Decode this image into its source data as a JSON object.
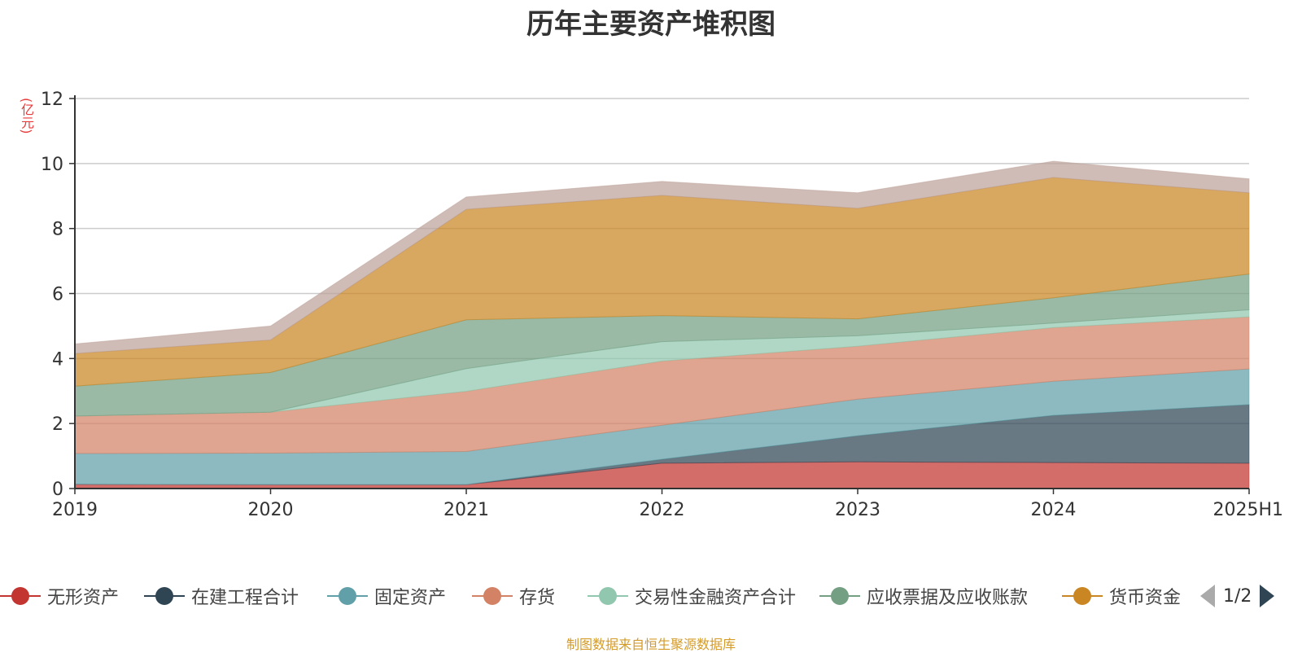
{
  "chart_data": {
    "type": "area",
    "stacked": true,
    "title": "历年主要资产堆积图",
    "unit": "(亿元)",
    "categories": [
      "2019",
      "2020",
      "2021",
      "2022",
      "2023",
      "2024",
      "2025H1"
    ],
    "ylim": [
      0,
      12
    ],
    "yticks": [
      0,
      2,
      4,
      6,
      8,
      10,
      12
    ],
    "grid": true,
    "legend_position": "bottom",
    "series": [
      {
        "name": "无形资产",
        "color": "#c23531",
        "values": [
          0.13,
          0.12,
          0.12,
          0.78,
          0.82,
          0.8,
          0.78
        ]
      },
      {
        "name": "在建工程合计",
        "color": "#2f4554",
        "values": [
          0.0,
          0.0,
          0.0,
          0.12,
          0.8,
          1.45,
          1.8
        ]
      },
      {
        "name": "固定资产",
        "color": "#61a0a8",
        "values": [
          0.95,
          0.97,
          1.02,
          1.05,
          1.13,
          1.05,
          1.1
        ]
      },
      {
        "name": "存货",
        "color": "#d48265",
        "values": [
          1.15,
          1.26,
          1.85,
          1.97,
          1.63,
          1.65,
          1.6
        ]
      },
      {
        "name": "交易性金融资产合计",
        "color": "#91c7ae",
        "values": [
          0.0,
          0.0,
          0.7,
          0.6,
          0.32,
          0.14,
          0.22
        ]
      },
      {
        "name": "应收票据及应收账款",
        "color": "#749f83",
        "values": [
          0.92,
          1.22,
          1.5,
          0.8,
          0.52,
          0.78,
          1.1
        ]
      },
      {
        "name": "货币资金",
        "color": "#ca8622",
        "values": [
          1.0,
          1.0,
          3.4,
          3.7,
          3.4,
          3.7,
          2.5
        ]
      },
      {
        "name": "",
        "color": "#bda29a",
        "values": [
          0.3,
          0.43,
          0.38,
          0.43,
          0.48,
          0.5,
          0.43
        ]
      }
    ]
  },
  "legend": {
    "pager_text": "1/2"
  },
  "footer": {
    "source": "制图数据来自恒生聚源数据库"
  }
}
